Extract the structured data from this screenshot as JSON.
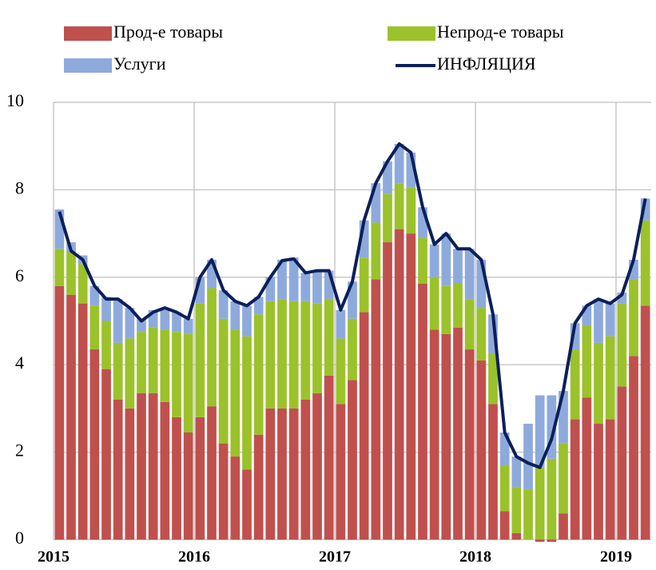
{
  "chart_data": {
    "type": "stacked_bar_line",
    "categories": [
      "2015",
      null,
      null,
      null,
      null,
      null,
      null,
      null,
      null,
      null,
      null,
      null,
      "2016",
      null,
      null,
      null,
      null,
      null,
      null,
      null,
      null,
      null,
      null,
      null,
      "2017",
      null,
      null,
      null,
      null,
      null,
      null,
      null,
      null,
      null,
      null,
      null,
      "2018",
      null,
      null,
      null,
      null,
      null,
      null,
      null,
      null,
      null,
      null,
      null,
      "2019",
      null,
      null
    ],
    "series": [
      {
        "name": "Прод-е товары",
        "color": "#c0504d",
        "values": [
          5.8,
          5.6,
          5.4,
          4.35,
          3.9,
          3.2,
          3.0,
          3.35,
          3.35,
          3.15,
          2.8,
          2.45,
          2.8,
          3.05,
          2.2,
          1.9,
          1.6,
          2.4,
          3.0,
          3.0,
          3.0,
          3.2,
          3.35,
          3.75,
          3.1,
          3.65,
          5.2,
          5.95,
          6.8,
          7.1,
          7.0,
          5.85,
          4.8,
          4.7,
          4.85,
          4.35,
          4.1,
          3.1,
          0.65,
          0.15,
          0.0,
          -0.05,
          -0.05,
          0.6,
          2.75,
          3.25,
          2.65,
          2.75,
          3.5,
          4.2,
          5.35
        ]
      },
      {
        "name": "Непрод-е товары",
        "color": "#9bc22a",
        "values": [
          0.85,
          1.0,
          0.9,
          1.0,
          1.1,
          1.3,
          1.6,
          1.4,
          1.5,
          1.65,
          1.95,
          2.25,
          2.6,
          2.7,
          2.85,
          2.9,
          3.05,
          2.75,
          2.45,
          2.5,
          2.45,
          2.25,
          2.05,
          1.75,
          1.5,
          1.4,
          1.25,
          1.3,
          1.1,
          1.05,
          1.05,
          1.05,
          1.2,
          1.1,
          1.0,
          1.15,
          1.2,
          1.15,
          1.05,
          1.05,
          1.15,
          1.65,
          1.85,
          1.6,
          1.6,
          1.65,
          1.85,
          1.9,
          1.9,
          1.75,
          1.95
        ]
      },
      {
        "name": "Услуги",
        "color": "#8eaadc",
        "values": [
          0.9,
          0.2,
          0.2,
          0.45,
          0.55,
          1.0,
          0.7,
          0.3,
          0.4,
          0.45,
          0.45,
          0.35,
          0.6,
          0.65,
          0.65,
          0.65,
          0.7,
          0.4,
          0.55,
          0.9,
          1.0,
          0.65,
          0.75,
          0.65,
          0.65,
          0.85,
          0.85,
          0.9,
          0.75,
          0.9,
          0.8,
          0.7,
          0.75,
          1.2,
          0.8,
          1.15,
          1.1,
          0.9,
          0.75,
          0.7,
          1.5,
          1.65,
          1.45,
          1.2,
          0.6,
          0.45,
          1.0,
          0.75,
          0.25,
          0.45,
          0.5
        ]
      },
      {
        "name": "ИНФЛЯЦИЯ",
        "color": "#0c1f5a",
        "type": "line",
        "values": [
          7.5,
          6.6,
          6.4,
          5.8,
          5.5,
          5.5,
          5.3,
          5.0,
          5.2,
          5.3,
          5.2,
          5.05,
          6.0,
          6.4,
          5.7,
          5.45,
          5.35,
          5.55,
          6.0,
          6.38,
          6.42,
          6.1,
          6.15,
          6.15,
          5.25,
          5.9,
          7.3,
          8.15,
          8.65,
          9.05,
          8.85,
          7.6,
          6.75,
          7.0,
          6.65,
          6.65,
          6.4,
          5.15,
          2.45,
          1.9,
          1.75,
          1.65,
          2.3,
          3.4,
          4.95,
          5.35,
          5.5,
          5.4,
          5.6,
          6.4,
          7.8
        ]
      }
    ],
    "ylim": [
      0,
      10
    ],
    "yticks": [
      0,
      2,
      4,
      6,
      8,
      10
    ],
    "grid": true
  }
}
